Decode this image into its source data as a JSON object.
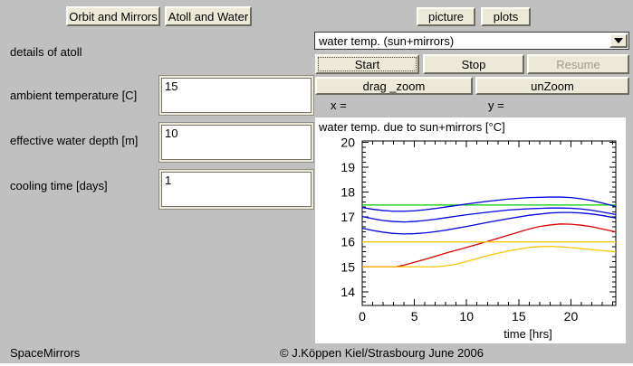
{
  "window": {
    "bg": "#c0c0c0",
    "panel_bg": "#ffffff",
    "button_bg": "#ece9d8"
  },
  "top_buttons": {
    "orbit": "Orbit and Mirrors",
    "atoll": "Atoll and Water",
    "picture": "picture",
    "plots": "plots"
  },
  "left_panel": {
    "details_label": "details of atoll",
    "fields": [
      {
        "label": "ambient temperature [C]",
        "value": "15"
      },
      {
        "label": "effective water depth [m]",
        "value": "10"
      },
      {
        "label": "cooling time [days]",
        "value": "1"
      }
    ]
  },
  "controls": {
    "dropdown_value": "water temp. (sun+mirrors)",
    "start": "Start",
    "stop": "Stop",
    "resume": "Resume",
    "drag_zoom": "drag _zoom",
    "unzoom": "unZoom",
    "x_label": "x =",
    "y_label": "y ="
  },
  "footer": {
    "app_name": "SpaceMirrors",
    "copyright": "© J.Köppen  Kiel/Strasbourg  June 2006"
  },
  "chart_data": {
    "type": "line",
    "title": "water temp. due to sun+mirrors [°C]",
    "xlabel": "time [hrs]",
    "ylabel": "",
    "xlim": [
      0,
      24.3
    ],
    "ylim": [
      13.45,
      20.05
    ],
    "xticks_major": [
      0,
      5,
      10,
      15,
      20
    ],
    "xtick_minor_step": 1,
    "yticks_major": [
      14,
      15,
      16,
      17,
      18,
      19,
      20
    ],
    "ytick_minor_step": 0.2,
    "grid": false,
    "legend": "none",
    "series": [
      {
        "name": "green flat (equilibrium)",
        "color": "#00cc00",
        "x": [
          0,
          24.3
        ],
        "y": [
          17.48,
          17.48
        ]
      },
      {
        "name": "blue upper",
        "color": "#0000e0",
        "x": [
          0,
          1,
          2,
          3,
          4,
          5,
          6,
          7,
          8,
          10,
          12,
          14,
          16,
          18,
          19,
          20,
          21,
          22,
          23,
          24.3
        ],
        "y": [
          17.38,
          17.31,
          17.26,
          17.23,
          17.23,
          17.25,
          17.29,
          17.34,
          17.4,
          17.52,
          17.63,
          17.72,
          17.78,
          17.8,
          17.8,
          17.78,
          17.73,
          17.66,
          17.56,
          17.42
        ]
      },
      {
        "name": "blue middle",
        "color": "#0000e0",
        "x": [
          0,
          1,
          2,
          3,
          4,
          5,
          6,
          7,
          8,
          10,
          12,
          14,
          16,
          18,
          19,
          20,
          21,
          22,
          23,
          24.3
        ],
        "y": [
          17.02,
          16.93,
          16.86,
          16.82,
          16.8,
          16.82,
          16.86,
          16.91,
          16.97,
          17.09,
          17.19,
          17.28,
          17.33,
          17.36,
          17.36,
          17.35,
          17.32,
          17.27,
          17.2,
          17.1
        ]
      },
      {
        "name": "blue lower",
        "color": "#0000e0",
        "x": [
          0,
          1,
          2,
          3,
          4,
          5,
          6,
          7,
          8,
          10,
          12,
          14,
          16,
          18,
          19,
          20,
          21,
          22,
          23,
          24.3
        ],
        "y": [
          16.55,
          16.46,
          16.39,
          16.34,
          16.32,
          16.33,
          16.36,
          16.41,
          16.47,
          16.62,
          16.78,
          16.93,
          17.07,
          17.16,
          17.18,
          17.18,
          17.16,
          17.12,
          17.06,
          16.96
        ]
      },
      {
        "name": "red rising",
        "color": "#e00000",
        "x": [
          0,
          2,
          3.2,
          4,
          6,
          8,
          10,
          12,
          14,
          16,
          17,
          18,
          19,
          20,
          21,
          22,
          23,
          24.3
        ],
        "y": [
          15.0,
          15.0,
          15.0,
          15.07,
          15.3,
          15.55,
          15.78,
          16.02,
          16.27,
          16.52,
          16.62,
          16.68,
          16.72,
          16.71,
          16.67,
          16.61,
          16.52,
          16.4
        ]
      },
      {
        "name": "orange flat",
        "color": "#ffc400",
        "x": [
          0,
          24.3
        ],
        "y": [
          16.0,
          16.0
        ]
      },
      {
        "name": "orange rising",
        "color": "#ffc400",
        "x": [
          0,
          4,
          7,
          8,
          9,
          10,
          12,
          14,
          16,
          17,
          18,
          19,
          20,
          22,
          24.3
        ],
        "y": [
          15.0,
          15.0,
          15.0,
          15.04,
          15.1,
          15.22,
          15.45,
          15.64,
          15.78,
          15.81,
          15.82,
          15.8,
          15.77,
          15.69,
          15.6
        ]
      }
    ]
  }
}
